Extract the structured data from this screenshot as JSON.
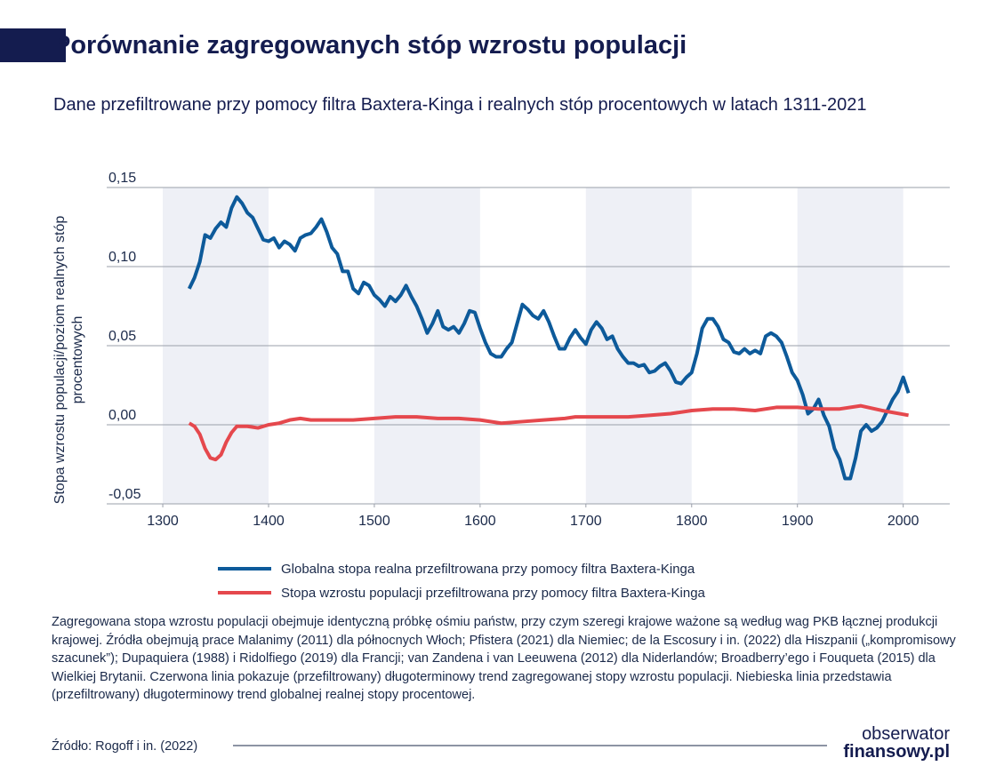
{
  "chart_data": {
    "type": "line",
    "title": "Porównanie zagregowanych stóp wzrostu populacji",
    "subtitle": "Dane przefiltrowane przy pomocy filtra Baxtera-Kinga i realnych stóp procentowych w latach 1311-2021",
    "y_label": "Stopa wzrostu populacji/poziom realnych stóp procentowych",
    "xlim": [
      1247,
      2044
    ],
    "xticks": [
      1300,
      1400,
      1500,
      1600,
      1700,
      1800,
      1900,
      2000
    ],
    "ylim": [
      -0.05,
      0.15
    ],
    "yticks": [
      {
        "value": -0.05,
        "label": "-0,05"
      },
      {
        "value": 0,
        "label": "0,00"
      },
      {
        "value": 0.05,
        "label": "0,05"
      },
      {
        "value": 0.1,
        "label": "0,10"
      },
      {
        "value": 0.15,
        "label": "0,15"
      }
    ],
    "grid": true,
    "series": [
      {
        "name": "Globalna stopa realna przefiltrowana przy pomocy filtra Baxtera-Kinga",
        "color": "#0d5a9a",
        "x": [
          1325,
          1330,
          1335,
          1340,
          1345,
          1350,
          1355,
          1360,
          1365,
          1370,
          1375,
          1380,
          1385,
          1390,
          1395,
          1400,
          1405,
          1410,
          1415,
          1420,
          1425,
          1430,
          1435,
          1440,
          1445,
          1450,
          1455,
          1460,
          1465,
          1470,
          1475,
          1480,
          1485,
          1490,
          1495,
          1500,
          1505,
          1510,
          1515,
          1520,
          1525,
          1530,
          1535,
          1540,
          1545,
          1550,
          1555,
          1560,
          1565,
          1570,
          1575,
          1580,
          1585,
          1590,
          1595,
          1600,
          1605,
          1610,
          1615,
          1620,
          1625,
          1630,
          1635,
          1640,
          1645,
          1650,
          1655,
          1660,
          1665,
          1670,
          1675,
          1680,
          1685,
          1690,
          1695,
          1700,
          1705,
          1710,
          1715,
          1720,
          1725,
          1730,
          1735,
          1740,
          1745,
          1750,
          1755,
          1760,
          1765,
          1770,
          1775,
          1780,
          1785,
          1790,
          1795,
          1800,
          1805,
          1810,
          1815,
          1820,
          1825,
          1830,
          1835,
          1840,
          1845,
          1850,
          1855,
          1860,
          1865,
          1870,
          1875,
          1880,
          1885,
          1890,
          1895,
          1900,
          1905,
          1910,
          1915,
          1920,
          1925,
          1930,
          1935,
          1940,
          1945,
          1950,
          1955,
          1960,
          1965,
          1970,
          1975,
          1980,
          1985,
          1990,
          1995,
          2000,
          2005
        ],
        "values": [
          0.086,
          0.093,
          0.103,
          0.12,
          0.118,
          0.124,
          0.128,
          0.125,
          0.137,
          0.144,
          0.14,
          0.134,
          0.131,
          0.124,
          0.117,
          0.116,
          0.118,
          0.112,
          0.116,
          0.114,
          0.11,
          0.118,
          0.12,
          0.121,
          0.125,
          0.13,
          0.122,
          0.112,
          0.108,
          0.097,
          0.097,
          0.086,
          0.083,
          0.09,
          0.088,
          0.082,
          0.079,
          0.075,
          0.081,
          0.078,
          0.082,
          0.088,
          0.081,
          0.075,
          0.067,
          0.058,
          0.064,
          0.072,
          0.062,
          0.06,
          0.062,
          0.058,
          0.064,
          0.072,
          0.071,
          0.061,
          0.052,
          0.045,
          0.043,
          0.043,
          0.048,
          0.052,
          0.064,
          0.076,
          0.073,
          0.069,
          0.067,
          0.072,
          0.065,
          0.056,
          0.048,
          0.048,
          0.055,
          0.06,
          0.055,
          0.051,
          0.06,
          0.065,
          0.061,
          0.054,
          0.056,
          0.048,
          0.043,
          0.039,
          0.039,
          0.037,
          0.038,
          0.033,
          0.034,
          0.037,
          0.039,
          0.034,
          0.027,
          0.026,
          0.03,
          0.033,
          0.045,
          0.061,
          0.067,
          0.067,
          0.062,
          0.054,
          0.052,
          0.046,
          0.045,
          0.048,
          0.045,
          0.047,
          0.045,
          0.056,
          0.058,
          0.056,
          0.052,
          0.043,
          0.033,
          0.028,
          0.019,
          0.007,
          0.01,
          0.016,
          0.006,
          -0.001,
          -0.015,
          -0.022,
          -0.034,
          -0.034,
          -0.021,
          -0.004,
          0,
          -0.004,
          -0.002,
          0.002,
          0.009,
          0.016,
          0.021,
          0.03,
          0.02
        ]
      },
      {
        "name": "Stopa wzrostu populacji przefiltrowana przy pomocy filtra Baxtera-Kinga",
        "color": "#e5484d",
        "x": [
          1325,
          1330,
          1335,
          1340,
          1345,
          1350,
          1355,
          1360,
          1365,
          1370,
          1380,
          1390,
          1400,
          1410,
          1420,
          1430,
          1440,
          1460,
          1480,
          1500,
          1520,
          1540,
          1560,
          1580,
          1600,
          1620,
          1640,
          1660,
          1680,
          1690,
          1720,
          1740,
          1760,
          1780,
          1800,
          1820,
          1840,
          1860,
          1880,
          1900,
          1920,
          1940,
          1960,
          1980,
          2005
        ],
        "values": [
          0.001,
          -0.001,
          -0.006,
          -0.015,
          -0.021,
          -0.022,
          -0.019,
          -0.011,
          -0.005,
          -0.001,
          -0.001,
          -0.002,
          0,
          0.001,
          0.003,
          0.004,
          0.003,
          0.003,
          0.003,
          0.004,
          0.005,
          0.005,
          0.004,
          0.004,
          0.003,
          0.001,
          0.002,
          0.003,
          0.004,
          0.005,
          0.005,
          0.005,
          0.006,
          0.007,
          0.009,
          0.01,
          0.01,
          0.009,
          0.011,
          0.011,
          0.01,
          0.01,
          0.012,
          0.009,
          0.006
        ]
      }
    ],
    "note": "Zagregowana stopa wzrostu populacji obejmuje identyczną próbkę ośmiu państw, przy czym szeregi krajowe ważone są według wag PKB łącznej produkcji krajowej. Źródła obejmują prace Malanimy (2011) dla północnych Włoch; Pfistera (2021) dla Niemiec; de la Escosury i in. (2022) dla Hiszpanii („kompromisowy szacunek”); Dupaquiera (1988) i Ridolfiego (2019) dla Francji; van Zandena i van Leeuwena (2012) dla Niderlandów; Broadberry’ego i Fouqueta (2015) dla Wielkiej Brytanii. Czerwona linia pokazuje (przefiltrowany) długoterminowy trend zagregowanej stopy wzrostu populacji. Niebieska linia przedstawia (przefiltrowany) długoterminowy trend globalnej realnej stopy procentowej.",
    "source": "Źródło: Rogoff i in. (2022)",
    "logo": [
      "obserwator",
      "finansowy.pl"
    ]
  }
}
